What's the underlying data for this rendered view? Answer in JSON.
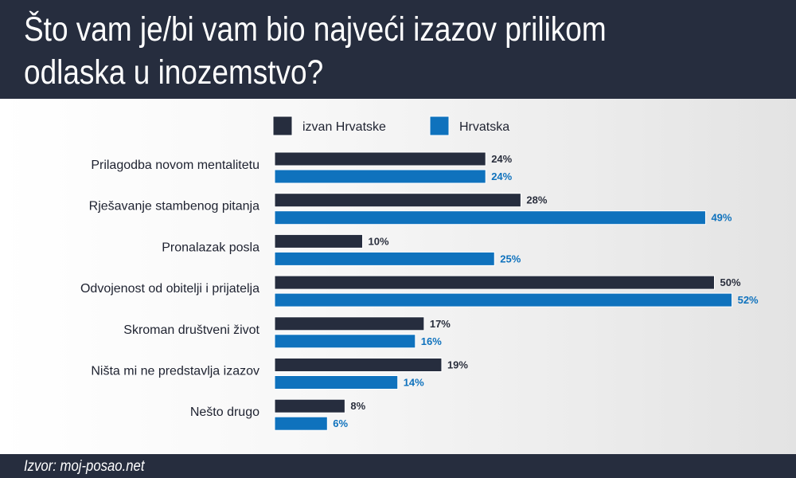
{
  "title_lines": [
    "Što vam je/bi vam bio najveći izazov prilikom",
    "odlaska u inozemstvo?"
  ],
  "source": "Izvor: moj-posao.net",
  "colors": {
    "header": "#262d3e",
    "dark_series": "#262d3e",
    "blue_series": "#0f72bd"
  },
  "chart_data": {
    "type": "bar",
    "orientation": "horizontal",
    "title": "Što vam je/bi vam bio najveći izazov prilikom odlaska u inozemstvo?",
    "categories": [
      "Prilagodba novom mentalitetu",
      "Rješavanje stambenog pitanja",
      "Pronalazak posla",
      "Odvojenost od obitelji i prijatelja",
      "Skroman društveni život",
      "Ništa mi ne predstavlja izazov",
      "Nešto drugo"
    ],
    "series": [
      {
        "name": "izvan Hrvatske",
        "color": "#262d3e",
        "values": [
          24,
          28,
          10,
          50,
          17,
          19,
          8
        ]
      },
      {
        "name": "Hrvatska",
        "color": "#0f72bd",
        "values": [
          24,
          49,
          25,
          52,
          16,
          14,
          6
        ]
      }
    ],
    "value_suffix": "%",
    "xlim": [
      0,
      52
    ],
    "grid": false,
    "legend_position": "top"
  }
}
